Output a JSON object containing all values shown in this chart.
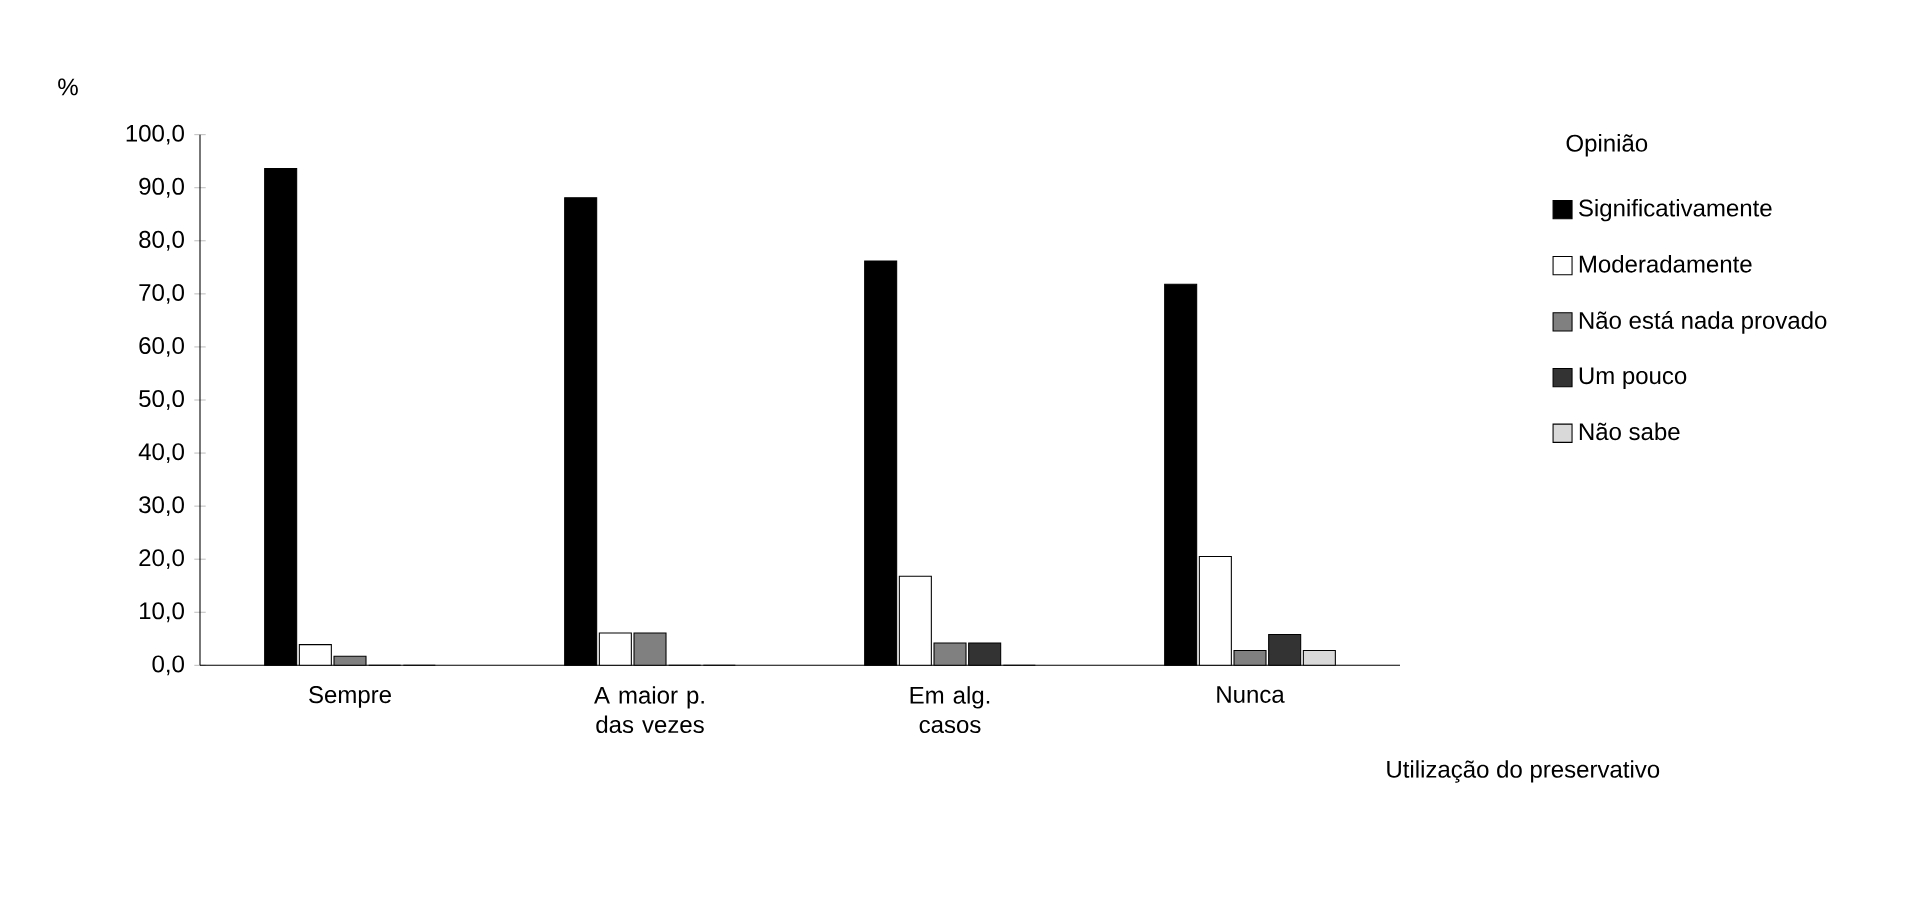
{
  "chart_data": {
    "type": "bar",
    "categories": [
      "Sempre",
      "A maior p. das vezes",
      "Em alg. casos",
      "Nunca"
    ],
    "series": [
      {
        "name": "Significativamente",
        "color": "#000000",
        "values": [
          93.6,
          88.1,
          76.2,
          71.8
        ]
      },
      {
        "name": "Moderadamente",
        "color": "#ffffff",
        "values": [
          3.9,
          6.1,
          16.8,
          20.5
        ]
      },
      {
        "name": "Não está nada provado",
        "color": "#808080",
        "values": [
          1.7,
          6.1,
          4.2,
          2.8
        ]
      },
      {
        "name": "Um pouco",
        "color": "#333333",
        "values": [
          0,
          0,
          4.2,
          5.8
        ]
      },
      {
        "name": "Não sabe",
        "color": "#d9d9d9",
        "values": [
          0,
          0,
          0,
          2.8
        ]
      }
    ],
    "ylabel": "%",
    "xlabel": "Utilização do preservativo",
    "legend_title": "Opinião",
    "ylim": [
      0,
      100
    ],
    "yticks": [
      {
        "value": 0,
        "label": "0,0"
      },
      {
        "value": 10,
        "label": "10,0"
      },
      {
        "value": 20,
        "label": "20,0"
      },
      {
        "value": 30,
        "label": "30,0"
      },
      {
        "value": 40,
        "label": "40,0"
      },
      {
        "value": 50,
        "label": "50,0"
      },
      {
        "value": 60,
        "label": "60,0"
      },
      {
        "value": 70,
        "label": "70,0"
      },
      {
        "value": 80,
        "label": "80,0"
      },
      {
        "value": 90,
        "label": "90,0"
      },
      {
        "value": 100,
        "label": "100,0"
      }
    ],
    "legend": "right",
    "grid": false
  }
}
